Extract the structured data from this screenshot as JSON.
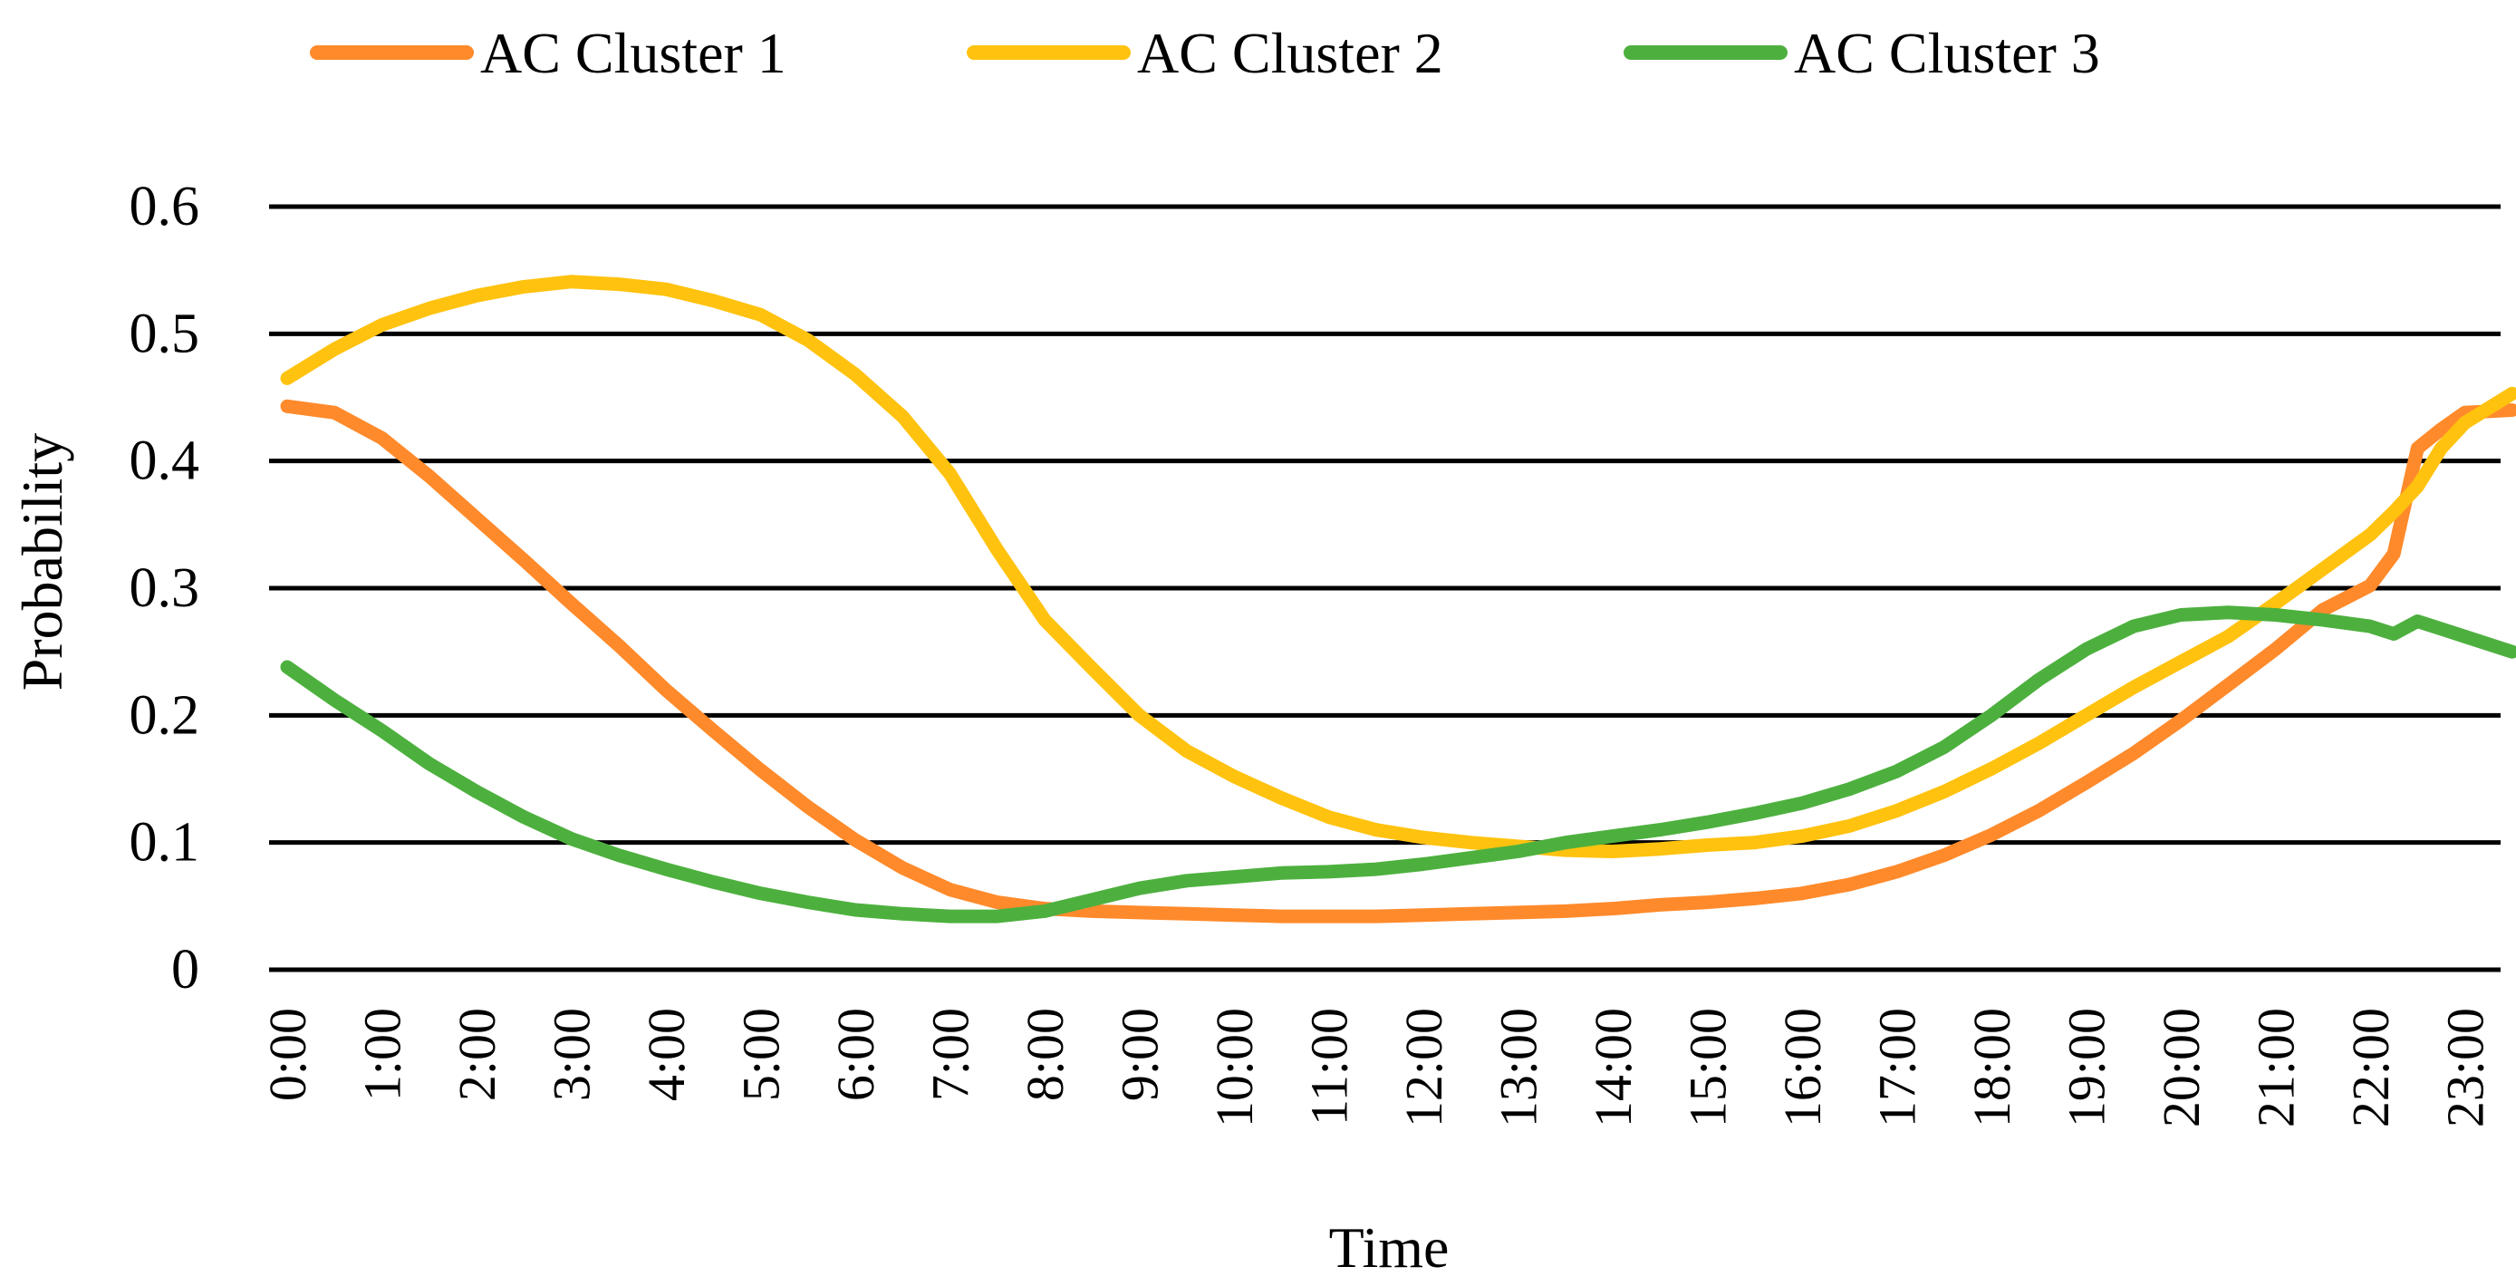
{
  "chart_data": {
    "type": "line",
    "title": "",
    "xlabel": "Time",
    "ylabel": "Probability",
    "ylim": [
      0,
      0.6
    ],
    "yticks": [
      "0",
      "0.1",
      "0.2",
      "0.3",
      "0.4",
      "0.5",
      "0.6"
    ],
    "xticks": [
      "0:00",
      "1:00",
      "2:00",
      "3:00",
      "4:00",
      "5:00",
      "6:00",
      "7:00",
      "8:00",
      "9:00",
      "10:00",
      "11:00",
      "12:00",
      "13:00",
      "14:00",
      "15:00",
      "16:00",
      "17:00",
      "18:00",
      "19:00",
      "20:00",
      "21:00",
      "22:00",
      "23:00"
    ],
    "x": [
      0,
      0.5,
      1,
      1.5,
      2,
      2.5,
      3,
      3.5,
      4,
      4.5,
      5,
      5.5,
      6,
      6.5,
      7,
      7.5,
      8,
      8.5,
      9,
      9.5,
      10,
      10.5,
      11,
      11.5,
      12,
      12.5,
      13,
      13.5,
      14,
      14.5,
      15,
      15.5,
      16,
      16.5,
      17,
      17.5,
      18,
      18.5,
      19,
      19.5,
      20,
      20.5,
      21,
      21.5,
      22,
      22.25,
      22.5,
      22.75,
      23,
      23.5
    ],
    "legend_position": "top",
    "grid": true,
    "series": [
      {
        "name": "AC Cluster 1",
        "color": "#FF8A2B",
        "values": [
          0.443,
          0.438,
          0.418,
          0.388,
          0.355,
          0.322,
          0.288,
          0.255,
          0.22,
          0.188,
          0.157,
          0.128,
          0.102,
          0.08,
          0.063,
          0.053,
          0.048,
          0.046,
          0.045,
          0.044,
          0.043,
          0.042,
          0.042,
          0.042,
          0.043,
          0.044,
          0.045,
          0.046,
          0.048,
          0.051,
          0.053,
          0.056,
          0.06,
          0.067,
          0.077,
          0.09,
          0.106,
          0.125,
          0.147,
          0.17,
          0.196,
          0.224,
          0.252,
          0.283,
          0.302,
          0.327,
          0.41,
          0.425,
          0.438,
          0.44
        ]
      },
      {
        "name": "AC Cluster 2",
        "color": "#FFC20E",
        "values": [
          0.465,
          0.488,
          0.507,
          0.52,
          0.53,
          0.537,
          0.541,
          0.539,
          0.535,
          0.526,
          0.515,
          0.495,
          0.468,
          0.435,
          0.39,
          0.33,
          0.275,
          0.237,
          0.2,
          0.172,
          0.152,
          0.135,
          0.12,
          0.11,
          0.104,
          0.1,
          0.097,
          0.094,
          0.093,
          0.095,
          0.098,
          0.1,
          0.105,
          0.113,
          0.125,
          0.14,
          0.158,
          0.178,
          0.2,
          0.222,
          0.242,
          0.262,
          0.288,
          0.315,
          0.342,
          0.36,
          0.38,
          0.41,
          0.43,
          0.453
        ]
      },
      {
        "name": "AC Cluster 3",
        "color": "#4DB03E",
        "values": [
          0.238,
          0.212,
          0.188,
          0.162,
          0.14,
          0.12,
          0.103,
          0.09,
          0.079,
          0.069,
          0.06,
          0.053,
          0.047,
          0.044,
          0.042,
          0.042,
          0.046,
          0.055,
          0.064,
          0.07,
          0.073,
          0.076,
          0.077,
          0.079,
          0.083,
          0.088,
          0.093,
          0.1,
          0.105,
          0.11,
          0.116,
          0.123,
          0.131,
          0.142,
          0.156,
          0.175,
          0.2,
          0.228,
          0.252,
          0.27,
          0.279,
          0.281,
          0.279,
          0.275,
          0.27,
          0.264,
          0.274,
          0.268,
          0.262,
          0.25
        ]
      }
    ]
  }
}
